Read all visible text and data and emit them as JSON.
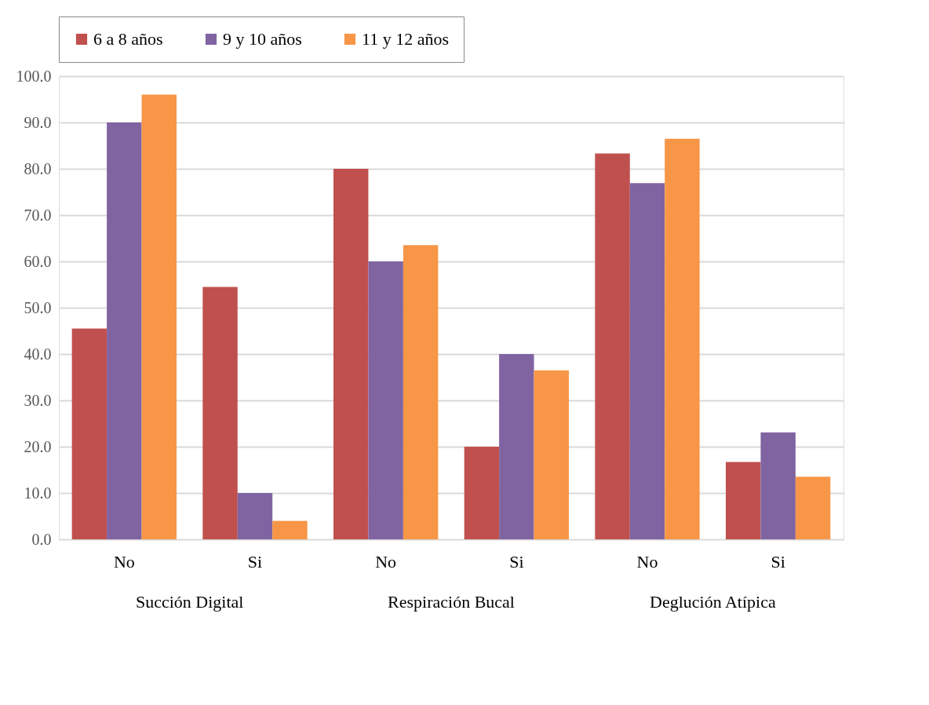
{
  "chart_data": {
    "type": "bar",
    "categories": [
      "No",
      "Si",
      "No",
      "Si",
      "No",
      "Si"
    ],
    "annotations": [
      "Succión Digital",
      "Respiración Bucal",
      "Deglución Atípica"
    ],
    "series": [
      {
        "name": "6 a 8 años",
        "color": "#c0504d",
        "values": [
          45.5,
          54.5,
          80,
          20,
          83.3,
          16.7
        ]
      },
      {
        "name": "9 y 10 años",
        "color": "#8064a2",
        "values": [
          90,
          10,
          60,
          40,
          76.9,
          23.1
        ]
      },
      {
        "name": "11 y 12 años",
        "color": "#f79646",
        "values": [
          96,
          4,
          63.5,
          36.5,
          86.5,
          13.5
        ]
      }
    ],
    "ylim": [
      0,
      100
    ],
    "yticks": [
      {
        "value": 0,
        "label": "0.0"
      },
      {
        "value": 10,
        "label": "10.0"
      },
      {
        "value": 20,
        "label": "20.0"
      },
      {
        "value": 30,
        "label": "30.0"
      },
      {
        "value": 40,
        "label": "40.0"
      },
      {
        "value": 50,
        "label": "50.0"
      },
      {
        "value": 60,
        "label": "60.0"
      },
      {
        "value": 70,
        "label": "70.0"
      },
      {
        "value": 80,
        "label": "80.0"
      },
      {
        "value": 90,
        "label": "90.0"
      },
      {
        "value": 100,
        "label": "100.0"
      }
    ],
    "grid": "y",
    "legend": "top"
  }
}
